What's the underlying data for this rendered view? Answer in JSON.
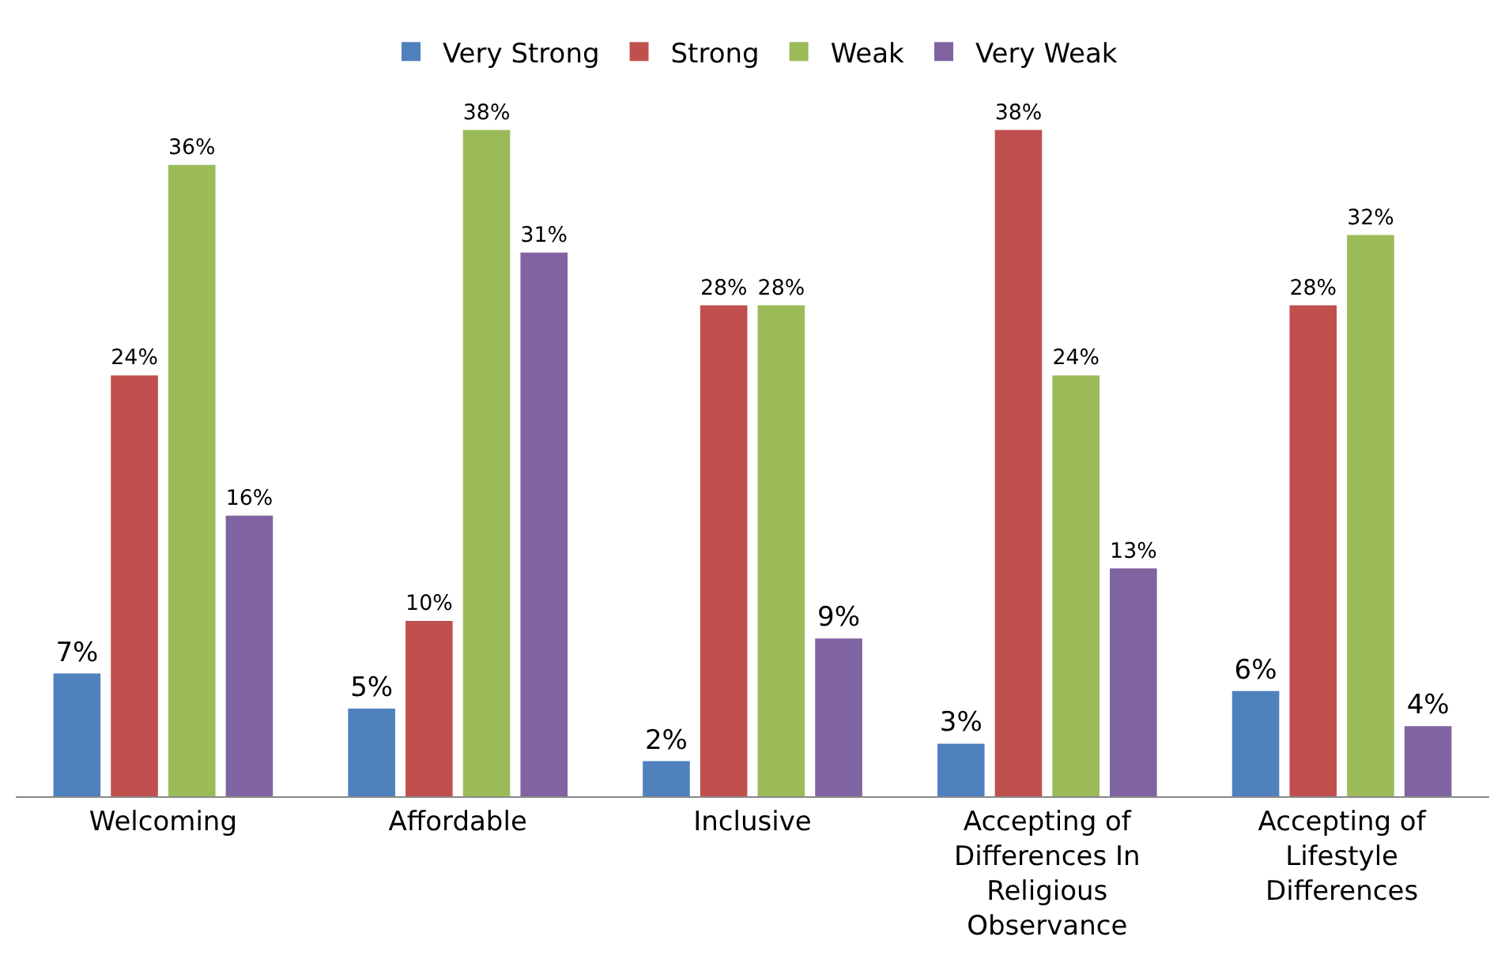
{
  "chart_data": {
    "type": "bar",
    "categories": [
      "Welcoming",
      "Affordable",
      "Inclusive",
      "Accepting of Differences In Religious Observance",
      "Accepting of Lifestyle Differences"
    ],
    "series": [
      {
        "name": "Very Strong",
        "color": "#4f81bd",
        "values": [
          7,
          5,
          2,
          3,
          6
        ],
        "value_labels": [
          "7%",
          "5%",
          "2%",
          "3%",
          "6%"
        ]
      },
      {
        "name": "Strong",
        "color": "#c0504d",
        "values": [
          24,
          10,
          28,
          38,
          28
        ],
        "value_labels": [
          "24%",
          "10%",
          "28%",
          "38%",
          "28%"
        ]
      },
      {
        "name": "Weak",
        "color": "#9bbb59",
        "values": [
          36,
          38,
          28,
          24,
          32
        ],
        "value_labels": [
          "36%",
          "38%",
          "28%",
          "24%",
          "32%"
        ]
      },
      {
        "name": "Very Weak",
        "color": "#8064a2",
        "values": [
          16,
          31,
          9,
          13,
          4
        ],
        "value_labels": [
          "16%",
          "31%",
          "9%",
          "13%",
          "4%"
        ]
      }
    ],
    "legend": "top"
  }
}
